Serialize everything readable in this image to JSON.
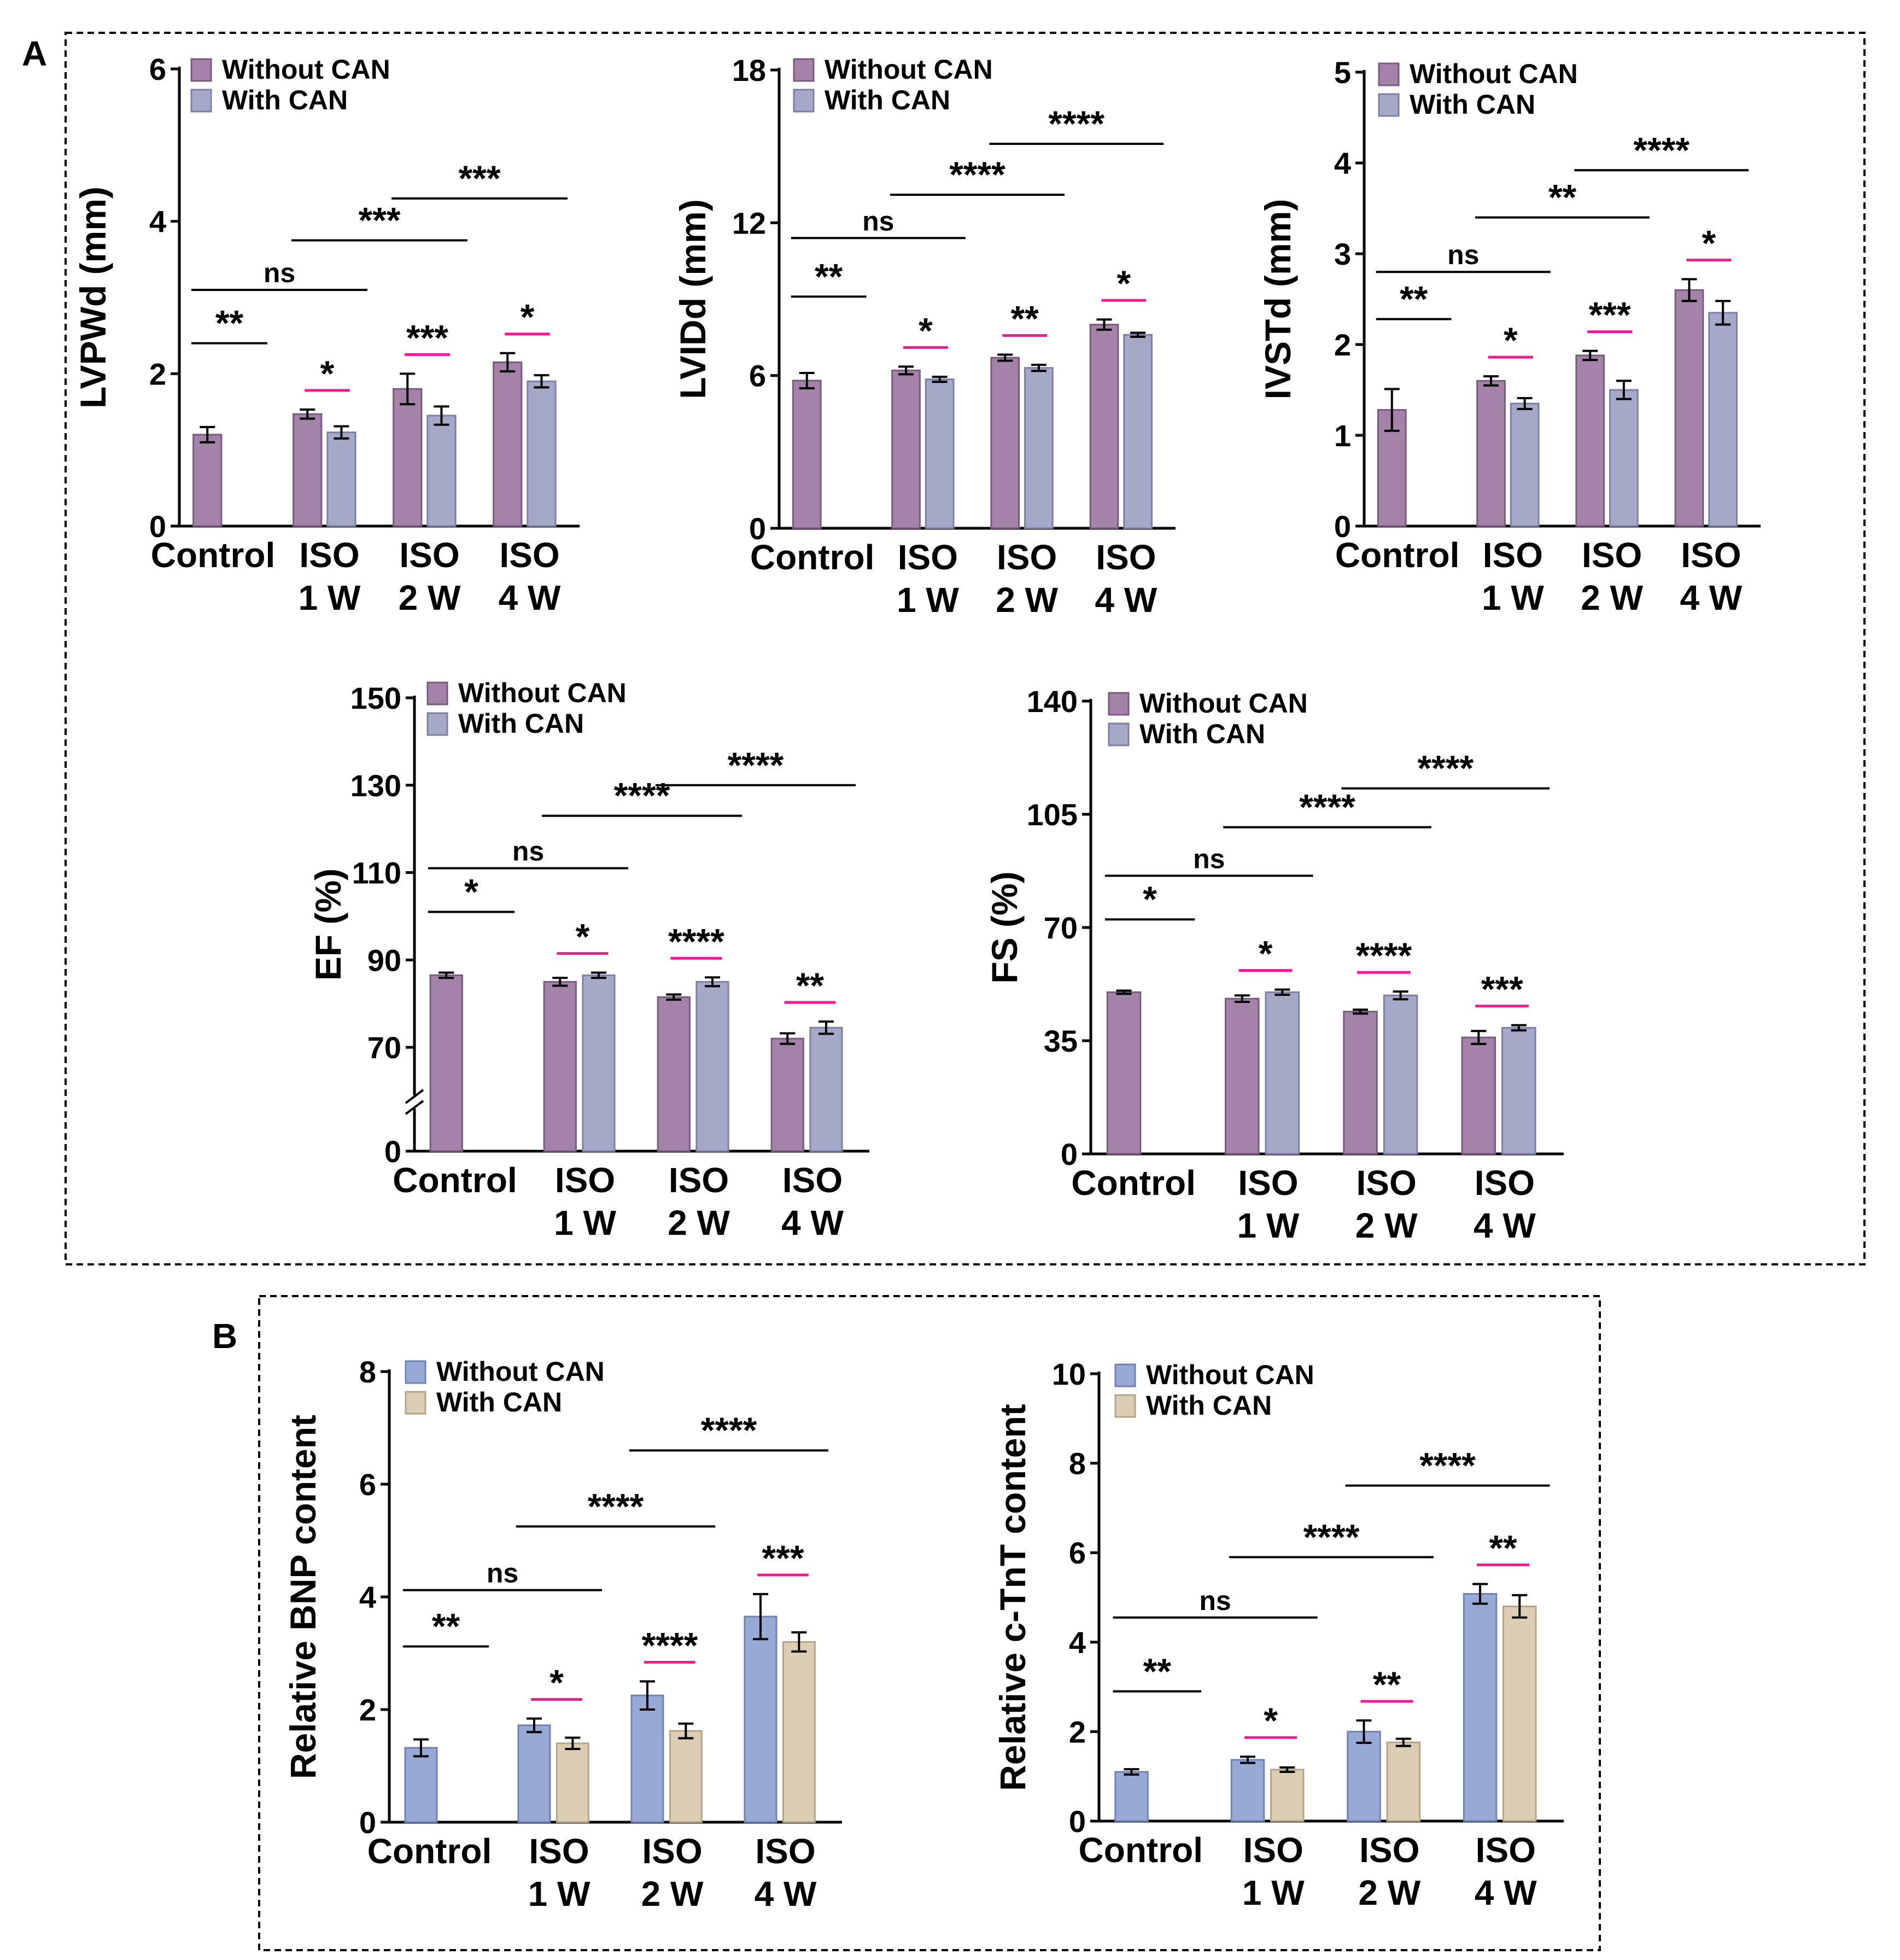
{
  "panels": [
    {
      "letter": "A"
    },
    {
      "letter": "B"
    }
  ],
  "legend_labels": [
    "Without CAN",
    "With CAN"
  ],
  "colors": {
    "A_without": "#a383a8",
    "A_with": "#a6a8c7",
    "B_without": "#98a9d6",
    "B_with": "#dcceb4",
    "sig_line_between": "#000000",
    "sig_line_within": "#ff1493"
  },
  "chart_data": [
    {
      "type": "bar",
      "panel": "A",
      "ylabel": "LVPWd (mm)",
      "categories": [
        [
          "Control"
        ],
        [
          "ISO",
          "1 W"
        ],
        [
          "ISO",
          "2 W"
        ],
        [
          "ISO",
          "4 W"
        ]
      ],
      "ylim": [
        0,
        6
      ],
      "yticks": [
        0,
        2,
        4,
        6
      ],
      "series": [
        {
          "name": "Without CAN",
          "values": [
            1.2,
            1.47,
            1.8,
            2.15
          ],
          "errors": [
            0.1,
            0.06,
            0.2,
            0.12
          ]
        },
        {
          "name": "With CAN",
          "values": [
            null,
            1.23,
            1.45,
            1.9
          ],
          "errors": [
            null,
            0.08,
            0.12,
            0.08
          ]
        }
      ],
      "within_sig": [
        "",
        "*",
        "***",
        "*"
      ],
      "between_sig": [
        {
          "from": 0,
          "to": 1,
          "label": "**",
          "y": 2.4
        },
        {
          "from": 0,
          "to": 2,
          "label": "ns",
          "y": 3.1
        },
        {
          "from": 1,
          "to": 3,
          "label": "***",
          "y": 3.75
        },
        {
          "from": 2,
          "to": 4,
          "label": "***",
          "y": 4.3
        }
      ]
    },
    {
      "type": "bar",
      "panel": "A",
      "ylabel": "LVIDd (mm)",
      "categories": [
        [
          "Control"
        ],
        [
          "ISO",
          "1 W"
        ],
        [
          "ISO",
          "2 W"
        ],
        [
          "ISO",
          "4 W"
        ]
      ],
      "ylim": [
        0,
        18
      ],
      "yticks": [
        0,
        6,
        12,
        18
      ],
      "series": [
        {
          "name": "Without CAN",
          "values": [
            5.8,
            6.2,
            6.7,
            8.0
          ],
          "errors": [
            0.3,
            0.15,
            0.12,
            0.2
          ]
        },
        {
          "name": "With CAN",
          "values": [
            null,
            5.85,
            6.3,
            7.6
          ],
          "errors": [
            null,
            0.1,
            0.12,
            0.08
          ]
        }
      ],
      "within_sig": [
        "",
        "*",
        "**",
        "*"
      ],
      "between_sig": [
        {
          "from": 0,
          "to": 1,
          "label": "**",
          "y": 9.1
        },
        {
          "from": 0,
          "to": 2,
          "label": "ns",
          "y": 11.4
        },
        {
          "from": 1,
          "to": 3,
          "label": "****",
          "y": 13.1
        },
        {
          "from": 2,
          "to": 4,
          "label": "****",
          "y": 15.1
        }
      ]
    },
    {
      "type": "bar",
      "panel": "A",
      "ylabel": "IVSTd (mm)",
      "categories": [
        [
          "Control"
        ],
        [
          "ISO",
          "1 W"
        ],
        [
          "ISO",
          "2 W"
        ],
        [
          "ISO",
          "4 W"
        ]
      ],
      "ylim": [
        0,
        5
      ],
      "yticks": [
        0,
        1,
        2,
        3,
        4,
        5
      ],
      "series": [
        {
          "name": "Without CAN",
          "values": [
            1.28,
            1.6,
            1.88,
            2.6
          ],
          "errors": [
            0.23,
            0.05,
            0.05,
            0.12
          ]
        },
        {
          "name": "With CAN",
          "values": [
            null,
            1.35,
            1.5,
            2.35
          ],
          "errors": [
            null,
            0.06,
            0.1,
            0.13
          ]
        }
      ],
      "within_sig": [
        "",
        "*",
        "***",
        "*"
      ],
      "between_sig": [
        {
          "from": 0,
          "to": 1,
          "label": "**",
          "y": 2.28
        },
        {
          "from": 0,
          "to": 2,
          "label": "ns",
          "y": 2.8
        },
        {
          "from": 1,
          "to": 3,
          "label": "**",
          "y": 3.4
        },
        {
          "from": 2,
          "to": 4,
          "label": "****",
          "y": 3.92
        }
      ]
    },
    {
      "type": "bar",
      "panel": "A",
      "broken_axis": true,
      "ylabel": "EF (%)",
      "categories": [
        [
          "Control"
        ],
        [
          "ISO",
          "1 W"
        ],
        [
          "ISO",
          "2 W"
        ],
        [
          "ISO",
          "4 W"
        ]
      ],
      "ylim": [
        0,
        150
      ],
      "yticks": [
        0,
        70,
        90,
        110,
        130,
        150
      ],
      "series": [
        {
          "name": "Without CAN",
          "values": [
            86.5,
            85,
            81.5,
            72
          ],
          "errors": [
            0.6,
            0.9,
            0.6,
            1.2
          ]
        },
        {
          "name": "With CAN",
          "values": [
            null,
            86.5,
            85,
            74.5
          ],
          "errors": [
            null,
            0.6,
            1.0,
            1.4
          ]
        }
      ],
      "within_sig": [
        "",
        "*",
        "****",
        "**"
      ],
      "between_sig": [
        {
          "from": 0,
          "to": 1,
          "label": "*",
          "y": 101
        },
        {
          "from": 0,
          "to": 2,
          "label": "ns",
          "y": 111
        },
        {
          "from": 1,
          "to": 3,
          "label": "****",
          "y": 123
        },
        {
          "from": 2,
          "to": 4,
          "label": "****",
          "y": 130
        }
      ]
    },
    {
      "type": "bar",
      "panel": "A",
      "ylabel": "FS (%)",
      "categories": [
        [
          "Control"
        ],
        [
          "ISO",
          "1 W"
        ],
        [
          "ISO",
          "2 W"
        ],
        [
          "ISO",
          "4 W"
        ]
      ],
      "ylim": [
        0,
        140
      ],
      "yticks": [
        0,
        35,
        70,
        105,
        140
      ],
      "series": [
        {
          "name": "Without CAN",
          "values": [
            50,
            48,
            44,
            36
          ],
          "errors": [
            0.5,
            1.0,
            0.6,
            2.0
          ]
        },
        {
          "name": "With CAN",
          "values": [
            null,
            50,
            49,
            39
          ],
          "errors": [
            null,
            0.8,
            1.2,
            0.8
          ]
        }
      ],
      "within_sig": [
        "",
        "*",
        "****",
        "***"
      ],
      "between_sig": [
        {
          "from": 0,
          "to": 1,
          "label": "*",
          "y": 72.5
        },
        {
          "from": 0,
          "to": 2,
          "label": "ns",
          "y": 86
        },
        {
          "from": 1,
          "to": 3,
          "label": "****",
          "y": 101
        },
        {
          "from": 2,
          "to": 4,
          "label": "****",
          "y": 113
        }
      ]
    },
    {
      "type": "bar",
      "panel": "B",
      "ylabel": "Relative BNP content",
      "categories": [
        [
          "Control"
        ],
        [
          "ISO",
          "1 W"
        ],
        [
          "ISO",
          "2 W"
        ],
        [
          "ISO",
          "4 W"
        ]
      ],
      "ylim": [
        0,
        8
      ],
      "yticks": [
        0,
        2,
        4,
        6,
        8
      ],
      "series": [
        {
          "name": "Without CAN",
          "values": [
            1.32,
            1.72,
            2.25,
            3.65
          ],
          "errors": [
            0.15,
            0.12,
            0.25,
            0.4
          ]
        },
        {
          "name": "With CAN",
          "values": [
            null,
            1.4,
            1.62,
            3.2
          ],
          "errors": [
            null,
            0.1,
            0.13,
            0.17
          ]
        }
      ],
      "within_sig": [
        "",
        "*",
        "****",
        "***"
      ],
      "between_sig": [
        {
          "from": 0,
          "to": 1,
          "label": "**",
          "y": 3.12
        },
        {
          "from": 0,
          "to": 2,
          "label": "ns",
          "y": 4.12
        },
        {
          "from": 1,
          "to": 3,
          "label": "****",
          "y": 5.25
        },
        {
          "from": 2,
          "to": 4,
          "label": "****",
          "y": 6.6
        }
      ]
    },
    {
      "type": "bar",
      "panel": "B",
      "ylabel": "Relative c-TnT content",
      "categories": [
        [
          "Control"
        ],
        [
          "ISO",
          "1 W"
        ],
        [
          "ISO",
          "2 W"
        ],
        [
          "ISO",
          "4 W"
        ]
      ],
      "ylim": [
        0,
        10
      ],
      "yticks": [
        0,
        2,
        4,
        6,
        8,
        10
      ],
      "series": [
        {
          "name": "Without CAN",
          "values": [
            1.1,
            1.37,
            2.0,
            5.08
          ],
          "errors": [
            0.06,
            0.07,
            0.25,
            0.22
          ]
        },
        {
          "name": "With CAN",
          "values": [
            null,
            1.15,
            1.76,
            4.8
          ],
          "errors": [
            null,
            0.05,
            0.08,
            0.25
          ]
        }
      ],
      "within_sig": [
        "",
        "*",
        "**",
        "**"
      ],
      "between_sig": [
        {
          "from": 0,
          "to": 1,
          "label": "**",
          "y": 2.9
        },
        {
          "from": 0,
          "to": 2,
          "label": "ns",
          "y": 4.55
        },
        {
          "from": 1,
          "to": 3,
          "label": "****",
          "y": 5.9
        },
        {
          "from": 2,
          "to": 4,
          "label": "****",
          "y": 7.5
        }
      ]
    }
  ]
}
